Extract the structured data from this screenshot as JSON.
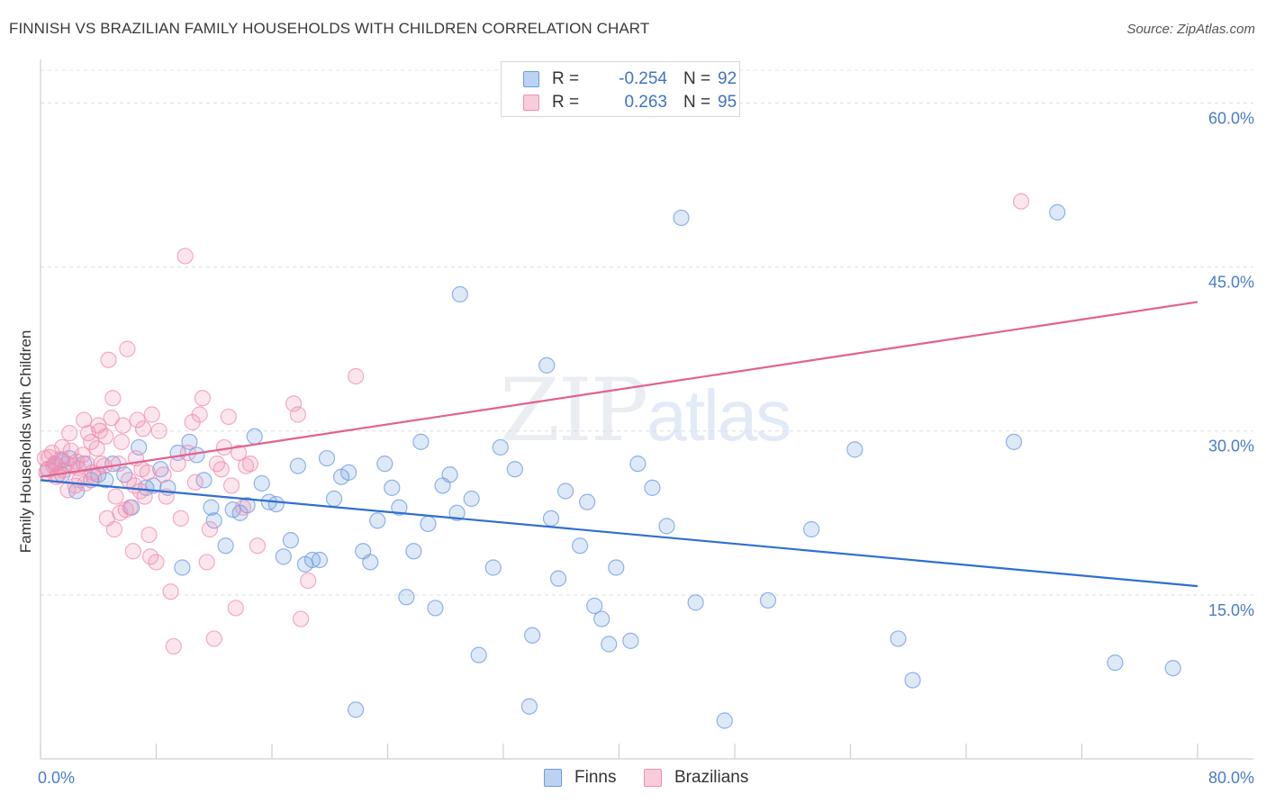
{
  "header": {
    "title": "FINNISH VS BRAZILIAN FAMILY HOUSEHOLDS WITH CHILDREN CORRELATION CHART",
    "source": "Source: ZipAtlas.com"
  },
  "watermark": {
    "zip": "ZIP",
    "atlas": "atlas"
  },
  "legend": {
    "rows": [
      {
        "r_label": "R =",
        "r_value": "-0.254",
        "n_label": "N =",
        "n_value": "92",
        "color": "#6b9be0"
      },
      {
        "r_label": "R =",
        "r_value": "0.263",
        "n_label": "N =",
        "n_value": "95",
        "color": "#f08fb0"
      }
    ],
    "bottom": [
      {
        "label": "Finns",
        "color": "#6b9be0"
      },
      {
        "label": "Brazilians",
        "color": "#f08fb0"
      }
    ]
  },
  "chart_data": {
    "type": "scatter",
    "ylabel": "Family Households with Children",
    "xlim": [
      0,
      80
    ],
    "ylim": [
      0,
      63
    ],
    "x_tick_labels": {
      "min": "0.0%",
      "max": "80.0%"
    },
    "y_ticks": [
      {
        "value": 15,
        "label": "15.0%"
      },
      {
        "value": 30,
        "label": "30.0%"
      },
      {
        "value": 45,
        "label": "45.0%"
      },
      {
        "value": 60,
        "label": "60.0%"
      }
    ],
    "grid": true,
    "series": [
      {
        "name": "Finns",
        "color": "#6b9be0",
        "line_color": "#2f6fd0",
        "trend": {
          "x": [
            0,
            80
          ],
          "y": [
            25.5,
            15.8
          ]
        },
        "points": [
          [
            0.5,
            26.5
          ],
          [
            1.0,
            27.0
          ],
          [
            1.5,
            26.0
          ],
          [
            2.0,
            27.5
          ],
          [
            2.5,
            24.5
          ],
          [
            3.0,
            27.0
          ],
          [
            3.5,
            25.5
          ],
          [
            4.0,
            26.0
          ],
          [
            4.5,
            25.5
          ],
          [
            5.0,
            27.0
          ],
          [
            5.8,
            26.0
          ],
          [
            6.3,
            23.0
          ],
          [
            6.8,
            28.5
          ],
          [
            7.3,
            24.8
          ],
          [
            7.8,
            25.0
          ],
          [
            8.3,
            26.5
          ],
          [
            8.8,
            24.8
          ],
          [
            9.5,
            28.0
          ],
          [
            9.8,
            17.5
          ],
          [
            10.3,
            29.0
          ],
          [
            10.8,
            27.8
          ],
          [
            11.3,
            25.5
          ],
          [
            11.8,
            23.0
          ],
          [
            12.0,
            21.8
          ],
          [
            12.8,
            19.5
          ],
          [
            13.3,
            22.8
          ],
          [
            13.8,
            22.5
          ],
          [
            14.3,
            23.2
          ],
          [
            14.8,
            29.5
          ],
          [
            15.3,
            25.2
          ],
          [
            15.8,
            23.5
          ],
          [
            16.3,
            23.3
          ],
          [
            16.8,
            18.5
          ],
          [
            17.3,
            20.0
          ],
          [
            17.8,
            26.8
          ],
          [
            18.3,
            17.8
          ],
          [
            18.8,
            18.2
          ],
          [
            19.3,
            18.2
          ],
          [
            19.8,
            27.5
          ],
          [
            20.3,
            23.8
          ],
          [
            20.8,
            25.8
          ],
          [
            21.3,
            26.2
          ],
          [
            21.8,
            4.5
          ],
          [
            22.3,
            19.0
          ],
          [
            22.8,
            18.0
          ],
          [
            23.3,
            21.8
          ],
          [
            23.8,
            27.0
          ],
          [
            24.3,
            24.8
          ],
          [
            24.8,
            23.0
          ],
          [
            25.3,
            14.8
          ],
          [
            25.8,
            19.0
          ],
          [
            26.3,
            29.0
          ],
          [
            26.8,
            21.5
          ],
          [
            27.3,
            13.8
          ],
          [
            27.8,
            25.0
          ],
          [
            28.3,
            26.0
          ],
          [
            28.8,
            22.5
          ],
          [
            29.0,
            42.5
          ],
          [
            29.8,
            23.8
          ],
          [
            30.3,
            9.5
          ],
          [
            31.3,
            17.5
          ],
          [
            31.8,
            28.5
          ],
          [
            32.8,
            26.5
          ],
          [
            33.8,
            4.8
          ],
          [
            34.0,
            11.3
          ],
          [
            35.0,
            36.0
          ],
          [
            35.3,
            22.0
          ],
          [
            35.8,
            16.5
          ],
          [
            36.3,
            24.5
          ],
          [
            37.3,
            19.5
          ],
          [
            37.8,
            23.5
          ],
          [
            38.3,
            14.0
          ],
          [
            38.8,
            12.8
          ],
          [
            39.3,
            10.5
          ],
          [
            39.8,
            17.5
          ],
          [
            40.8,
            10.8
          ],
          [
            41.3,
            27.0
          ],
          [
            42.3,
            24.8
          ],
          [
            43.3,
            21.3
          ],
          [
            44.3,
            49.5
          ],
          [
            45.3,
            14.3
          ],
          [
            47.3,
            3.5
          ],
          [
            50.3,
            14.5
          ],
          [
            53.3,
            21.0
          ],
          [
            56.3,
            28.3
          ],
          [
            59.3,
            11.0
          ],
          [
            60.3,
            7.2
          ],
          [
            67.3,
            29.0
          ],
          [
            70.3,
            50.0
          ],
          [
            74.3,
            8.8
          ],
          [
            78.3,
            8.3
          ],
          [
            1.5,
            27.3
          ]
        ]
      },
      {
        "name": "Brazilians",
        "color": "#f08fb0",
        "line_color": "#e0628f",
        "trend": {
          "x": [
            0,
            80
          ],
          "y": [
            25.8,
            41.8
          ]
        },
        "points": [
          [
            0.3,
            27.5
          ],
          [
            0.5,
            26.5
          ],
          [
            0.8,
            28.0
          ],
          [
            1.0,
            27.0
          ],
          [
            1.2,
            26.0
          ],
          [
            1.5,
            28.5
          ],
          [
            1.8,
            27.0
          ],
          [
            2.0,
            29.8
          ],
          [
            2.2,
            26.8
          ],
          [
            2.5,
            27.2
          ],
          [
            2.7,
            25.5
          ],
          [
            3.0,
            31.0
          ],
          [
            3.2,
            27.0
          ],
          [
            3.5,
            29.0
          ],
          [
            3.7,
            25.8
          ],
          [
            4.0,
            30.5
          ],
          [
            4.2,
            27.0
          ],
          [
            4.5,
            29.5
          ],
          [
            4.7,
            36.5
          ],
          [
            5.0,
            33.0
          ],
          [
            5.2,
            24.0
          ],
          [
            5.5,
            22.5
          ],
          [
            5.7,
            30.5
          ],
          [
            6.0,
            37.5
          ],
          [
            6.2,
            23.0
          ],
          [
            6.5,
            25.0
          ],
          [
            6.7,
            31.0
          ],
          [
            7.0,
            26.5
          ],
          [
            7.2,
            24.0
          ],
          [
            7.5,
            20.5
          ],
          [
            7.7,
            31.5
          ],
          [
            8.0,
            18.0
          ],
          [
            8.2,
            30.0
          ],
          [
            8.5,
            26.0
          ],
          [
            8.7,
            24.0
          ],
          [
            9.0,
            15.3
          ],
          [
            9.2,
            10.3
          ],
          [
            9.5,
            27.0
          ],
          [
            9.7,
            22.0
          ],
          [
            10.0,
            46.0
          ],
          [
            10.2,
            28.0
          ],
          [
            10.5,
            30.8
          ],
          [
            10.7,
            25.3
          ],
          [
            11.0,
            31.5
          ],
          [
            11.2,
            33.0
          ],
          [
            11.5,
            18.0
          ],
          [
            11.7,
            21.0
          ],
          [
            12.0,
            11.0
          ],
          [
            12.2,
            27.0
          ],
          [
            12.5,
            26.5
          ],
          [
            12.7,
            28.5
          ],
          [
            13.0,
            31.3
          ],
          [
            13.2,
            25.0
          ],
          [
            13.5,
            13.8
          ],
          [
            13.7,
            28.0
          ],
          [
            14.0,
            23.0
          ],
          [
            14.2,
            26.8
          ],
          [
            14.5,
            27.0
          ],
          [
            15.0,
            19.5
          ],
          [
            17.5,
            32.5
          ],
          [
            17.8,
            31.5
          ],
          [
            18.0,
            12.8
          ],
          [
            18.5,
            16.3
          ],
          [
            21.8,
            35.0
          ],
          [
            67.8,
            51.0
          ],
          [
            0.4,
            26.2
          ],
          [
            0.6,
            27.6
          ],
          [
            0.9,
            26.8
          ],
          [
            1.1,
            25.8
          ],
          [
            1.4,
            27.4
          ],
          [
            1.6,
            26.4
          ],
          [
            1.9,
            24.6
          ],
          [
            2.1,
            28.2
          ],
          [
            2.4,
            25.0
          ],
          [
            2.6,
            26.6
          ],
          [
            2.9,
            27.8
          ],
          [
            3.1,
            25.2
          ],
          [
            3.3,
            29.8
          ],
          [
            3.6,
            26.2
          ],
          [
            3.9,
            28.4
          ],
          [
            4.1,
            30.0
          ],
          [
            4.4,
            26.8
          ],
          [
            4.6,
            22.0
          ],
          [
            4.9,
            31.2
          ],
          [
            5.1,
            21.0
          ],
          [
            5.4,
            27.0
          ],
          [
            5.6,
            29.0
          ],
          [
            5.9,
            22.8
          ],
          [
            6.1,
            25.5
          ],
          [
            6.4,
            19.0
          ],
          [
            6.6,
            27.5
          ],
          [
            6.9,
            24.5
          ],
          [
            7.1,
            30.2
          ],
          [
            7.4,
            26.2
          ],
          [
            7.6,
            18.5
          ]
        ]
      }
    ]
  }
}
